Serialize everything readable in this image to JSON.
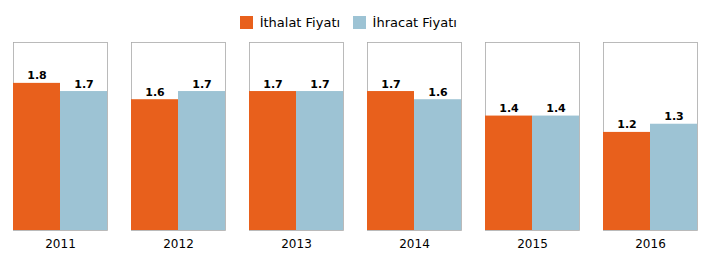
{
  "chart_data": {
    "type": "bar",
    "categories": [
      "2011",
      "2012",
      "2013",
      "2014",
      "2015",
      "2016"
    ],
    "series": [
      {
        "name": "İthalat Fiyatı",
        "color": "#E8601C",
        "values": [
          1.8,
          1.6,
          1.7,
          1.7,
          1.4,
          1.2
        ]
      },
      {
        "name": "İhracat Fiyatı",
        "color": "#9DC3D4",
        "values": [
          1.7,
          1.7,
          1.7,
          1.6,
          1.4,
          1.3
        ]
      }
    ],
    "ylim": [
      0,
      2.3
    ],
    "data_labels": true,
    "tick_labels": "x",
    "legend": "top",
    "grid": false
  }
}
